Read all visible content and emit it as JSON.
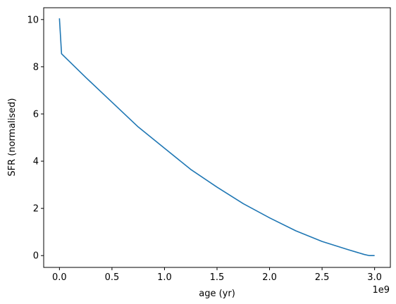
{
  "chart_data": {
    "type": "line",
    "xlabel": "age (yr)",
    "ylabel": "SFR (normalised)",
    "x_offset_label": "1e9",
    "xlim": [
      -0.15,
      3.15
    ],
    "ylim": [
      -0.5,
      10.5
    ],
    "xticks": [
      0.0,
      0.5,
      1.0,
      1.5,
      2.0,
      2.5,
      3.0
    ],
    "xtick_labels": [
      "0.0",
      "0.5",
      "1.0",
      "1.5",
      "2.0",
      "2.5",
      "3.0"
    ],
    "yticks": [
      0,
      2,
      4,
      6,
      8,
      10
    ],
    "ytick_labels": [
      "0",
      "2",
      "4",
      "6",
      "8",
      "10"
    ],
    "grid": false,
    "color": "#1f77b4",
    "series": [
      {
        "x": [
          0.0,
          0.0,
          0.01,
          0.01,
          0.02,
          0.02,
          0.25,
          0.5,
          0.75,
          1.0,
          1.25,
          1.5,
          1.75,
          2.0,
          2.25,
          2.5,
          2.75,
          2.9,
          2.95,
          3.0
        ],
        "y": [
          10.05,
          10.05,
          9.3,
          9.3,
          8.55,
          8.55,
          7.55,
          6.5,
          5.45,
          4.55,
          3.65,
          2.9,
          2.2,
          1.6,
          1.05,
          0.6,
          0.25,
          0.05,
          0.0,
          0.0
        ]
      }
    ]
  }
}
